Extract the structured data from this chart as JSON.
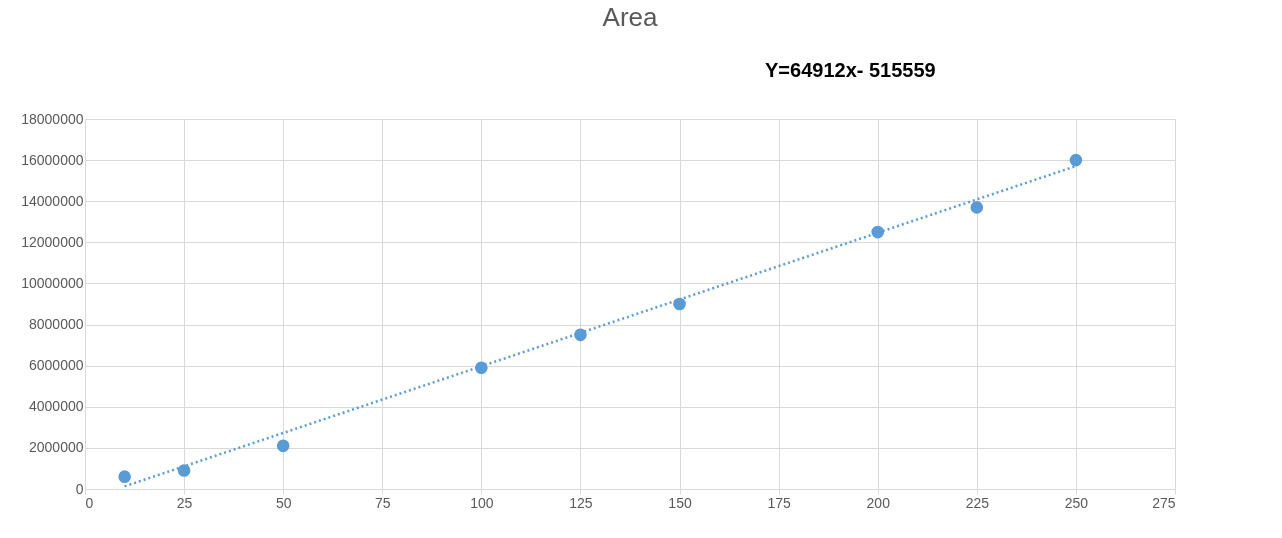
{
  "chart_data": {
    "type": "scatter",
    "title": "Area",
    "x": [
      10,
      25,
      50,
      100,
      125,
      150,
      200,
      225,
      250
    ],
    "series": [
      {
        "color": "#5b9bd5",
        "marker": "circle",
        "values": [
          600000,
          900000,
          2100000,
          5900000,
          7500000,
          9000000,
          12500000,
          13700000,
          16000000
        ]
      },
      {
        "type": "line",
        "color": "#5b9bd5",
        "line_style": "dotted",
        "x": [
          10,
          250
        ],
        "values": [
          130000,
          15710000
        ]
      }
    ],
    "xlim": [
      0,
      275
    ],
    "xticks": [
      0,
      25,
      50,
      75,
      100,
      125,
      150,
      175,
      200,
      225,
      250,
      275
    ],
    "ylim": [
      0,
      18000000
    ],
    "yticks": [
      0,
      2000000,
      4000000,
      6000000,
      8000000,
      10000000,
      12000000,
      14000000,
      16000000,
      18000000
    ],
    "grid": true,
    "legend": false,
    "annotations": [
      "Y=64912x- 515559"
    ]
  }
}
